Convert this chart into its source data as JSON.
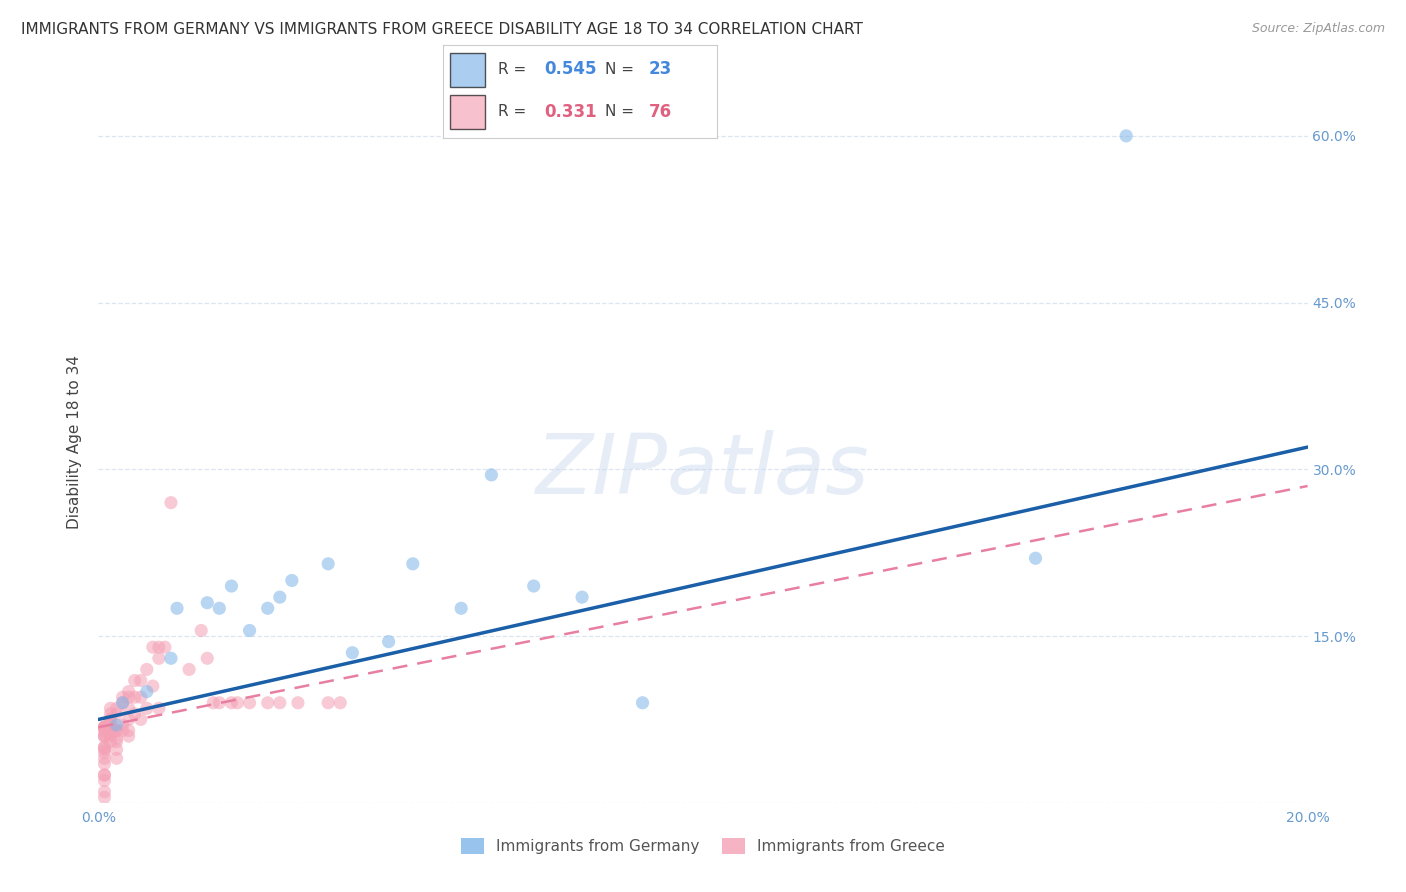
{
  "title": "IMMIGRANTS FROM GERMANY VS IMMIGRANTS FROM GREECE DISABILITY AGE 18 TO 34 CORRELATION CHART",
  "source": "Source: ZipAtlas.com",
  "ylabel": "Disability Age 18 to 34",
  "xlim": [
    0.0,
    0.2
  ],
  "ylim": [
    0.0,
    0.65
  ],
  "xticks": [
    0.0,
    0.05,
    0.1,
    0.15,
    0.2
  ],
  "xtick_labels": [
    "0.0%",
    "",
    "",
    "",
    "20.0%"
  ],
  "yticks": [
    0.0,
    0.15,
    0.3,
    0.45,
    0.6
  ],
  "ytick_labels_right": [
    "",
    "15.0%",
    "30.0%",
    "45.0%",
    "60.0%"
  ],
  "germany_x": [
    0.003,
    0.004,
    0.008,
    0.012,
    0.013,
    0.018,
    0.02,
    0.022,
    0.025,
    0.028,
    0.03,
    0.032,
    0.038,
    0.042,
    0.048,
    0.052,
    0.06,
    0.065,
    0.072,
    0.08,
    0.09,
    0.155,
    0.17
  ],
  "germany_y": [
    0.07,
    0.09,
    0.1,
    0.13,
    0.175,
    0.18,
    0.175,
    0.195,
    0.155,
    0.175,
    0.185,
    0.2,
    0.215,
    0.135,
    0.145,
    0.215,
    0.175,
    0.295,
    0.195,
    0.185,
    0.09,
    0.22,
    0.6
  ],
  "greece_x": [
    0.001,
    0.001,
    0.001,
    0.001,
    0.001,
    0.001,
    0.001,
    0.001,
    0.001,
    0.001,
    0.001,
    0.001,
    0.001,
    0.001,
    0.001,
    0.001,
    0.001,
    0.001,
    0.001,
    0.001,
    0.002,
    0.002,
    0.002,
    0.002,
    0.002,
    0.002,
    0.002,
    0.002,
    0.002,
    0.002,
    0.003,
    0.003,
    0.003,
    0.003,
    0.003,
    0.003,
    0.003,
    0.003,
    0.004,
    0.004,
    0.004,
    0.004,
    0.005,
    0.005,
    0.005,
    0.005,
    0.005,
    0.005,
    0.006,
    0.006,
    0.006,
    0.007,
    0.007,
    0.007,
    0.008,
    0.008,
    0.009,
    0.009,
    0.01,
    0.01,
    0.01,
    0.011,
    0.012,
    0.015,
    0.017,
    0.018,
    0.019,
    0.02,
    0.022,
    0.023,
    0.025,
    0.028,
    0.03,
    0.033,
    0.038,
    0.04
  ],
  "greece_y": [
    0.065,
    0.068,
    0.068,
    0.068,
    0.068,
    0.068,
    0.06,
    0.06,
    0.06,
    0.05,
    0.05,
    0.048,
    0.045,
    0.04,
    0.035,
    0.025,
    0.025,
    0.02,
    0.01,
    0.005,
    0.075,
    0.075,
    0.07,
    0.07,
    0.065,
    0.065,
    0.06,
    0.055,
    0.085,
    0.08,
    0.085,
    0.08,
    0.065,
    0.065,
    0.058,
    0.055,
    0.048,
    0.04,
    0.095,
    0.09,
    0.07,
    0.065,
    0.1,
    0.095,
    0.085,
    0.075,
    0.065,
    0.06,
    0.11,
    0.095,
    0.08,
    0.11,
    0.095,
    0.075,
    0.12,
    0.085,
    0.14,
    0.105,
    0.14,
    0.13,
    0.085,
    0.14,
    0.27,
    0.12,
    0.155,
    0.13,
    0.09,
    0.09,
    0.09,
    0.09,
    0.09,
    0.09,
    0.09,
    0.09,
    0.09,
    0.09
  ],
  "germany_color": "#7eb5e8",
  "greece_color": "#f4a0b5",
  "germany_line_color": "#1a5fa8",
  "greece_line_color": "#e87fa0",
  "legend_R_germany": "0.545",
  "legend_N_germany": "23",
  "legend_R_greece": "0.331",
  "legend_N_greece": "76",
  "watermark": "ZIPatlas",
  "background_color": "#ffffff",
  "grid_color": "#dde5f0",
  "marker_size": 90,
  "marker_alpha": 0.55,
  "title_fontsize": 11,
  "axis_label_fontsize": 11,
  "tick_fontsize": 10,
  "germany_line_x": [
    0.0,
    0.2
  ],
  "germany_line_y": [
    0.075,
    0.32
  ],
  "greece_line_x": [
    0.0,
    0.2
  ],
  "greece_line_y": [
    0.068,
    0.285
  ]
}
